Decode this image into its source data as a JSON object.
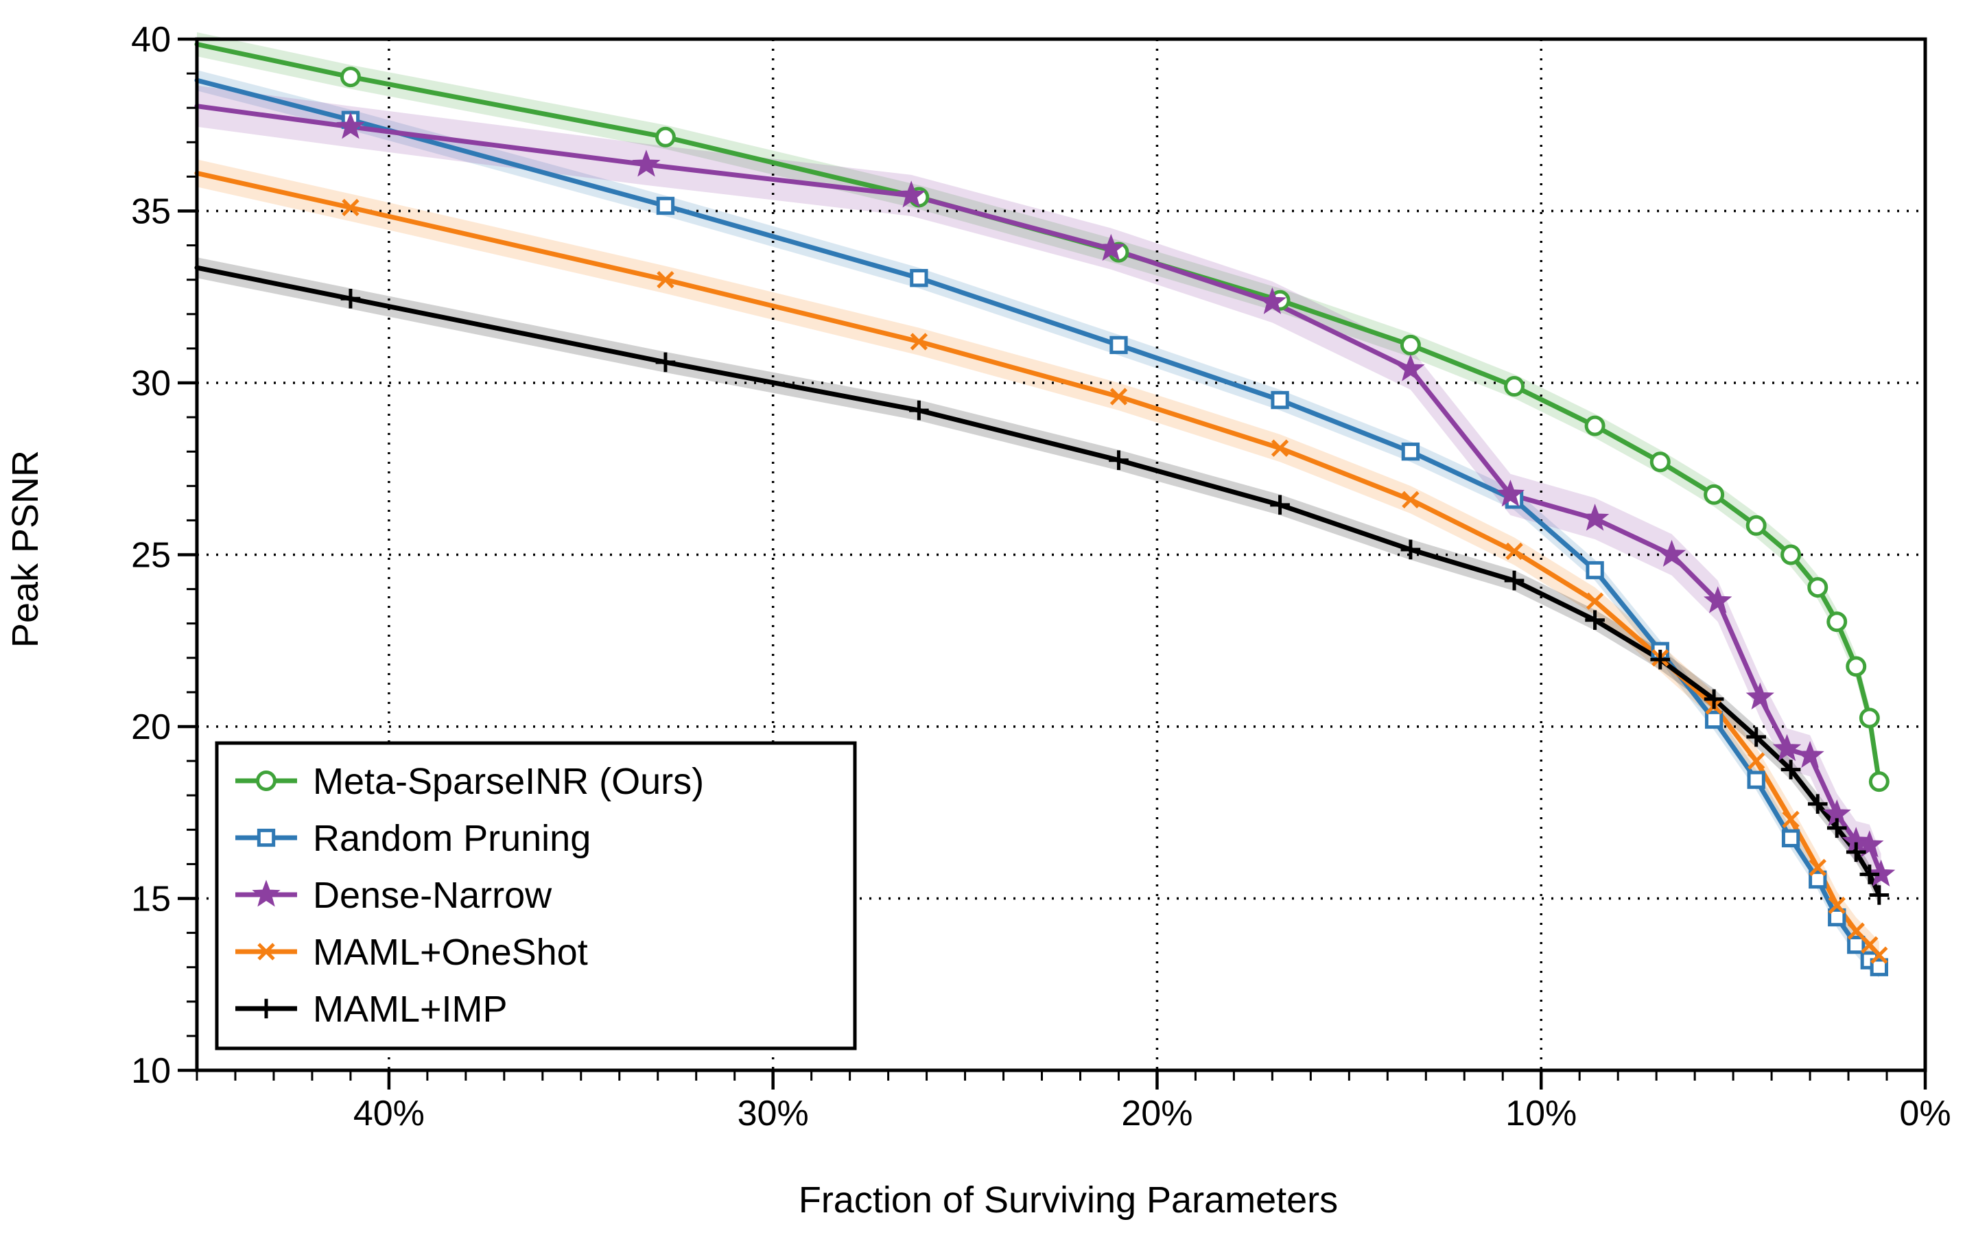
{
  "chart_data": {
    "type": "line",
    "title": "",
    "xlabel": "Fraction of Surviving Parameters",
    "ylabel": "Peak PSNR",
    "xlim": [
      45,
      0
    ],
    "ylim": [
      10,
      40
    ],
    "x_ticks": [
      40,
      30,
      20,
      10,
      0
    ],
    "x_tick_labels": [
      "40%",
      "30%",
      "20%",
      "10%",
      "0%"
    ],
    "y_ticks": [
      10,
      15,
      20,
      25,
      30,
      35,
      40
    ],
    "y_tick_labels": [
      "10",
      "15",
      "20",
      "25",
      "30",
      "35",
      "40"
    ],
    "grid": true,
    "legend_position": "bottom-left",
    "series": [
      {
        "name": "Meta-SparseINR (Ours)",
        "color": "#3fa33a",
        "marker": "circle",
        "band": 0.35,
        "points": [
          [
            45,
            39.85
          ],
          [
            41,
            38.9
          ],
          [
            32.8,
            37.15
          ],
          [
            26.2,
            35.4
          ],
          [
            21,
            33.8
          ],
          [
            16.8,
            32.4
          ],
          [
            13.4,
            31.1
          ],
          [
            10.7,
            29.9
          ],
          [
            8.6,
            28.75
          ],
          [
            6.9,
            27.7
          ],
          [
            5.5,
            26.75
          ],
          [
            4.4,
            25.85
          ],
          [
            3.5,
            25.0
          ],
          [
            2.8,
            24.05
          ],
          [
            2.3,
            23.05
          ],
          [
            1.8,
            21.75
          ],
          [
            1.45,
            20.25
          ],
          [
            1.2,
            18.4
          ]
        ]
      },
      {
        "name": "Random Pruning",
        "color": "#2f79b4",
        "marker": "square",
        "band": 0.3,
        "points": [
          [
            45,
            38.8
          ],
          [
            41,
            37.65
          ],
          [
            32.8,
            35.15
          ],
          [
            26.2,
            33.05
          ],
          [
            21,
            31.1
          ],
          [
            16.8,
            29.5
          ],
          [
            13.4,
            28.0
          ],
          [
            10.7,
            26.6
          ],
          [
            8.6,
            24.55
          ],
          [
            6.9,
            22.2
          ],
          [
            5.5,
            20.2
          ],
          [
            4.4,
            18.45
          ],
          [
            3.5,
            16.75
          ],
          [
            2.8,
            15.55
          ],
          [
            2.3,
            14.45
          ],
          [
            1.8,
            13.65
          ],
          [
            1.45,
            13.2
          ],
          [
            1.2,
            13.0
          ]
        ]
      },
      {
        "name": "Dense-Narrow",
        "color": "#8c3fa0",
        "marker": "star",
        "band": 0.6,
        "points": [
          [
            45,
            38.05
          ],
          [
            41,
            37.45
          ],
          [
            33.3,
            36.35
          ],
          [
            26.4,
            35.45
          ],
          [
            21.2,
            33.9
          ],
          [
            17,
            32.35
          ],
          [
            13.4,
            30.4
          ],
          [
            10.8,
            26.75
          ],
          [
            8.6,
            26.05
          ],
          [
            6.6,
            25.0
          ],
          [
            5.4,
            23.65
          ],
          [
            4.3,
            20.85
          ],
          [
            3.6,
            19.35
          ],
          [
            3.0,
            19.15
          ],
          [
            2.3,
            17.45
          ],
          [
            1.8,
            16.65
          ],
          [
            1.45,
            16.55
          ],
          [
            1.15,
            15.7
          ]
        ]
      },
      {
        "name": "MAML+OneShot",
        "color": "#f57f13",
        "marker": "x",
        "band": 0.4,
        "points": [
          [
            45,
            36.1
          ],
          [
            41,
            35.1
          ],
          [
            32.8,
            33.0
          ],
          [
            26.2,
            31.2
          ],
          [
            21,
            29.6
          ],
          [
            16.8,
            28.1
          ],
          [
            13.4,
            26.6
          ],
          [
            10.7,
            25.1
          ],
          [
            8.6,
            23.65
          ],
          [
            6.9,
            22.0
          ],
          [
            5.5,
            20.6
          ],
          [
            4.4,
            19.0
          ],
          [
            3.5,
            17.3
          ],
          [
            2.8,
            15.9
          ],
          [
            2.3,
            14.8
          ],
          [
            1.8,
            14.05
          ],
          [
            1.45,
            13.65
          ],
          [
            1.2,
            13.35
          ]
        ]
      },
      {
        "name": "MAML+IMP",
        "color": "#000000",
        "marker": "plus",
        "band": 0.3,
        "points": [
          [
            45,
            33.35
          ],
          [
            41,
            32.45
          ],
          [
            32.8,
            30.6
          ],
          [
            26.2,
            29.2
          ],
          [
            21,
            27.75
          ],
          [
            16.8,
            26.45
          ],
          [
            13.4,
            25.15
          ],
          [
            10.7,
            24.25
          ],
          [
            8.6,
            23.1
          ],
          [
            6.9,
            21.95
          ],
          [
            5.5,
            20.8
          ],
          [
            4.4,
            19.7
          ],
          [
            3.5,
            18.75
          ],
          [
            2.8,
            17.75
          ],
          [
            2.3,
            17.05
          ],
          [
            1.8,
            16.35
          ],
          [
            1.45,
            15.7
          ],
          [
            1.2,
            15.1
          ]
        ]
      }
    ]
  }
}
